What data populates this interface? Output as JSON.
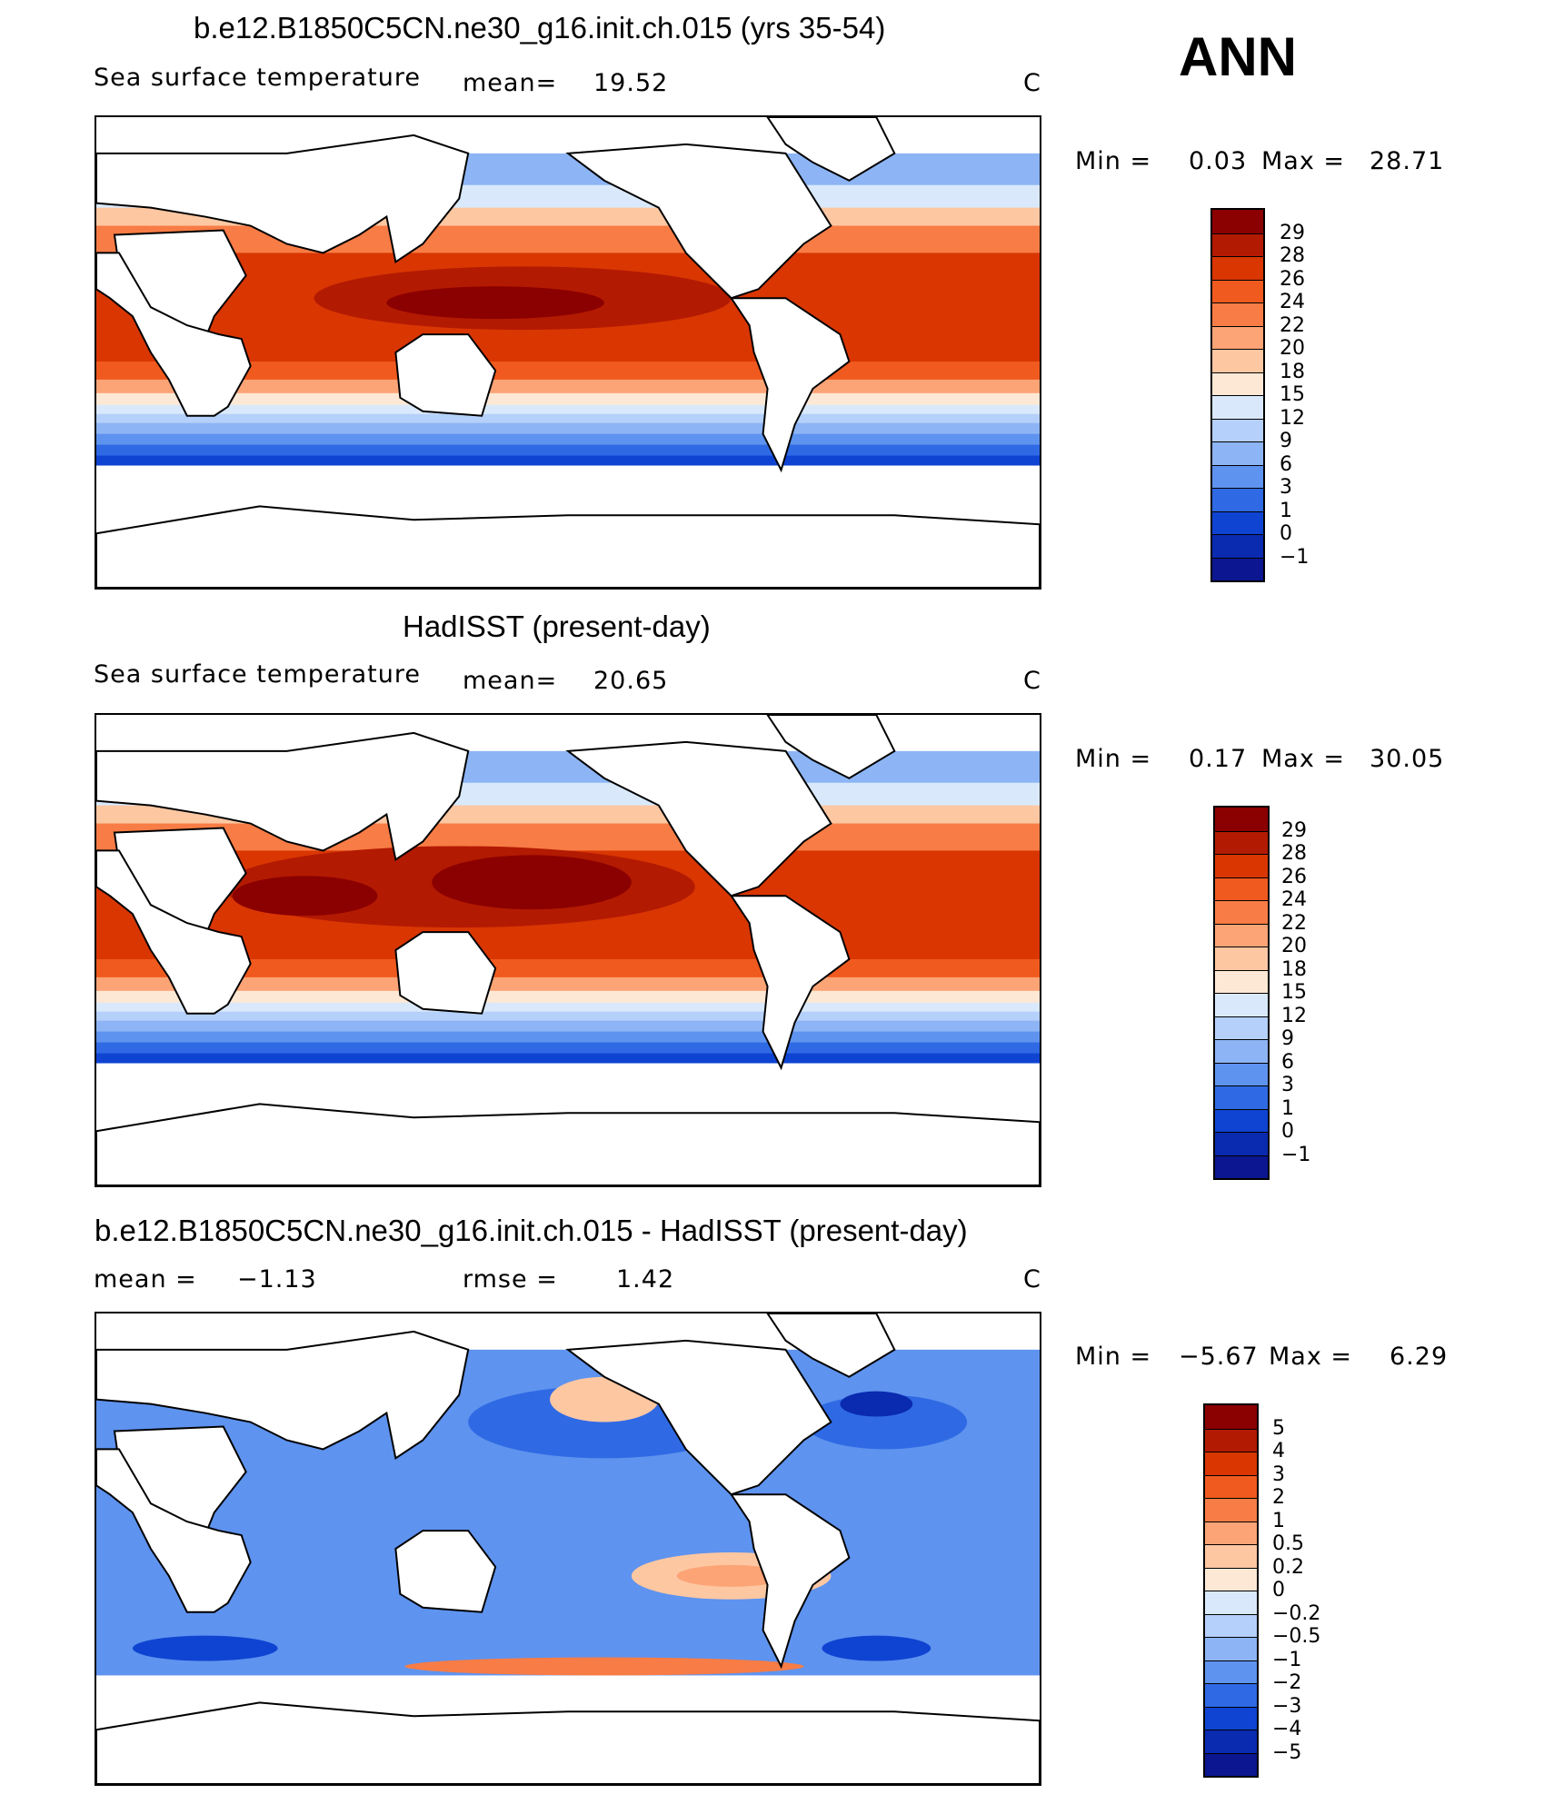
{
  "season": "ANN",
  "chart_data": [
    {
      "type": "heatmap",
      "title": "b.e12.B1850C5CN.ne30_g16.init.ch.015 (yrs 35-54)",
      "variable": "Sea surface temperature",
      "stat_label": "mean=",
      "stat_value": "19.52",
      "units": "C",
      "min_label": "Min =",
      "min_value": "0.03",
      "max_label": "Max =",
      "max_value": "28.71",
      "levels": [
        "29",
        "28",
        "26",
        "24",
        "22",
        "20",
        "18",
        "15",
        "12",
        "9",
        "6",
        "3",
        "1",
        "0",
        "−1"
      ],
      "level_colors": [
        "#8b0000",
        "#b31a02",
        "#d93602",
        "#f05a1e",
        "#f87c45",
        "#fca476",
        "#fdc7a2",
        "#fde8d6",
        "#d9e9fb",
        "#b5d0fa",
        "#8db5f5",
        "#5e93ef",
        "#2f6ae4",
        "#0f44d2",
        "#0a2ab0",
        "#0b1690"
      ]
    },
    {
      "type": "heatmap",
      "title": "HadISST (present-day)",
      "variable": "Sea surface temperature",
      "stat_label": "mean=",
      "stat_value": "20.65",
      "units": "C",
      "min_label": "Min =",
      "min_value": "0.17",
      "max_label": "Max =",
      "max_value": "30.05",
      "levels": [
        "29",
        "28",
        "26",
        "24",
        "22",
        "20",
        "18",
        "15",
        "12",
        "9",
        "6",
        "3",
        "1",
        "0",
        "−1"
      ],
      "level_colors": [
        "#8b0000",
        "#b31a02",
        "#d93602",
        "#f05a1e",
        "#f87c45",
        "#fca476",
        "#fdc7a2",
        "#fde8d6",
        "#d9e9fb",
        "#b5d0fa",
        "#8db5f5",
        "#5e93ef",
        "#2f6ae4",
        "#0f44d2",
        "#0a2ab0",
        "#0b1690"
      ]
    },
    {
      "type": "heatmap",
      "title": "b.e12.B1850C5CN.ne30_g16.init.ch.015 - HadISST (present-day)",
      "variable": "",
      "stat_label": "mean =",
      "stat_value": "−1.13",
      "stat2_label": "rmse =",
      "stat2_value": "1.42",
      "units": "C",
      "min_label": "Min =",
      "min_value": "−5.67",
      "max_label": "Max =",
      "max_value": "6.29",
      "levels": [
        "5",
        "4",
        "3",
        "2",
        "1",
        "0.5",
        "0.2",
        "0",
        "−0.2",
        "−0.5",
        "−1",
        "−2",
        "−3",
        "−4",
        "−5"
      ],
      "level_colors": [
        "#8b0000",
        "#b31a02",
        "#d93602",
        "#f05a1e",
        "#f87c45",
        "#fca476",
        "#fdc7a2",
        "#fde8d6",
        "#d9e9fb",
        "#b5d0fa",
        "#8db5f5",
        "#5e93ef",
        "#2f6ae4",
        "#0f44d2",
        "#0a2ab0",
        "#0b1690"
      ]
    }
  ]
}
